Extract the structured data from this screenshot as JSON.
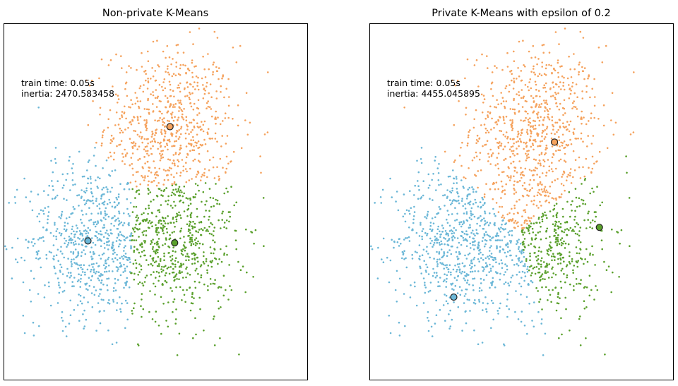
{
  "chart_data": [
    {
      "type": "scatter",
      "title": "Non-private K-Means",
      "xlabel": "",
      "ylabel": "",
      "annotation": {
        "line1": "train time: 0.05s",
        "line2": "inertia: 2470.583458"
      },
      "xlim": [
        -4.4,
        5.4
      ],
      "ylim": [
        -4.2,
        5.0
      ],
      "grid": false,
      "clusters": [
        {
          "color": "#f5a25d",
          "spread": 1.05,
          "points": 700,
          "center": {
            "x": 0.95,
            "y": 2.35
          }
        },
        {
          "color": "#6bb7d7",
          "spread": 1.0,
          "points": 650,
          "center": {
            "x": -1.7,
            "y": -0.6
          }
        },
        {
          "color": "#5aa02c",
          "spread": 1.0,
          "points": 650,
          "center": {
            "x": 1.1,
            "y": -0.65
          }
        }
      ],
      "centroids": [
        {
          "x": 0.95,
          "y": 2.35,
          "color": "#f5a25d"
        },
        {
          "x": -1.7,
          "y": -0.6,
          "color": "#6bb7d7"
        },
        {
          "x": 1.1,
          "y": -0.65,
          "color": "#5aa02c"
        }
      ]
    },
    {
      "type": "scatter",
      "title": "Private K-Means with epsilon of 0.2",
      "xlabel": "",
      "ylabel": "",
      "annotation": {
        "line1": "train time: 0.05s",
        "line2": "inertia: 4455.045895"
      },
      "xlim": [
        -4.4,
        5.4
      ],
      "ylim": [
        -4.2,
        5.0
      ],
      "grid": false,
      "clusters": [
        {
          "color": "#f5a25d",
          "spread": 1.05,
          "points": 700,
          "center": {
            "x": 0.95,
            "y": 2.35
          }
        },
        {
          "color": "#6bb7d7",
          "spread": 1.0,
          "points": 650,
          "center": {
            "x": -1.7,
            "y": -0.6
          }
        },
        {
          "color": "#5aa02c",
          "spread": 1.0,
          "points": 650,
          "center": {
            "x": 1.1,
            "y": -0.65
          }
        }
      ],
      "centroids": [
        {
          "x": 1.55,
          "y": 1.95,
          "color": "#f5a25d"
        },
        {
          "x": -1.7,
          "y": -2.05,
          "color": "#6bb7d7"
        },
        {
          "x": 3.0,
          "y": -0.25,
          "color": "#5aa02c"
        }
      ]
    }
  ]
}
